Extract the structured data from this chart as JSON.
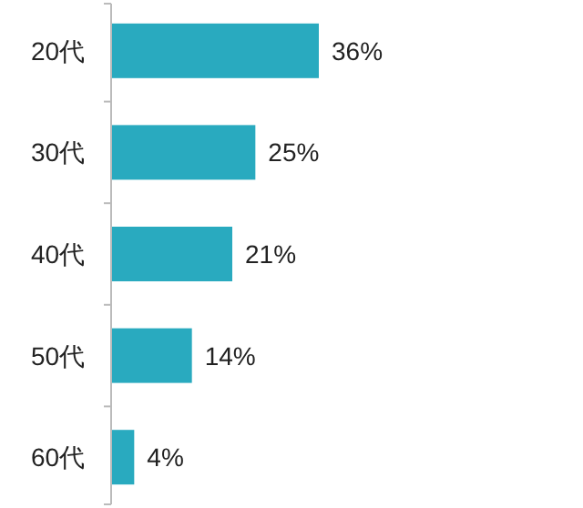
{
  "chart_data": {
    "type": "bar",
    "orientation": "horizontal",
    "categories": [
      "20代",
      "30代",
      "40代",
      "50代",
      "60代"
    ],
    "values": [
      36,
      25,
      21,
      14,
      4
    ],
    "value_labels": [
      "36%",
      "25%",
      "21%",
      "14%",
      "4%"
    ],
    "color": "#29aabf"
  }
}
